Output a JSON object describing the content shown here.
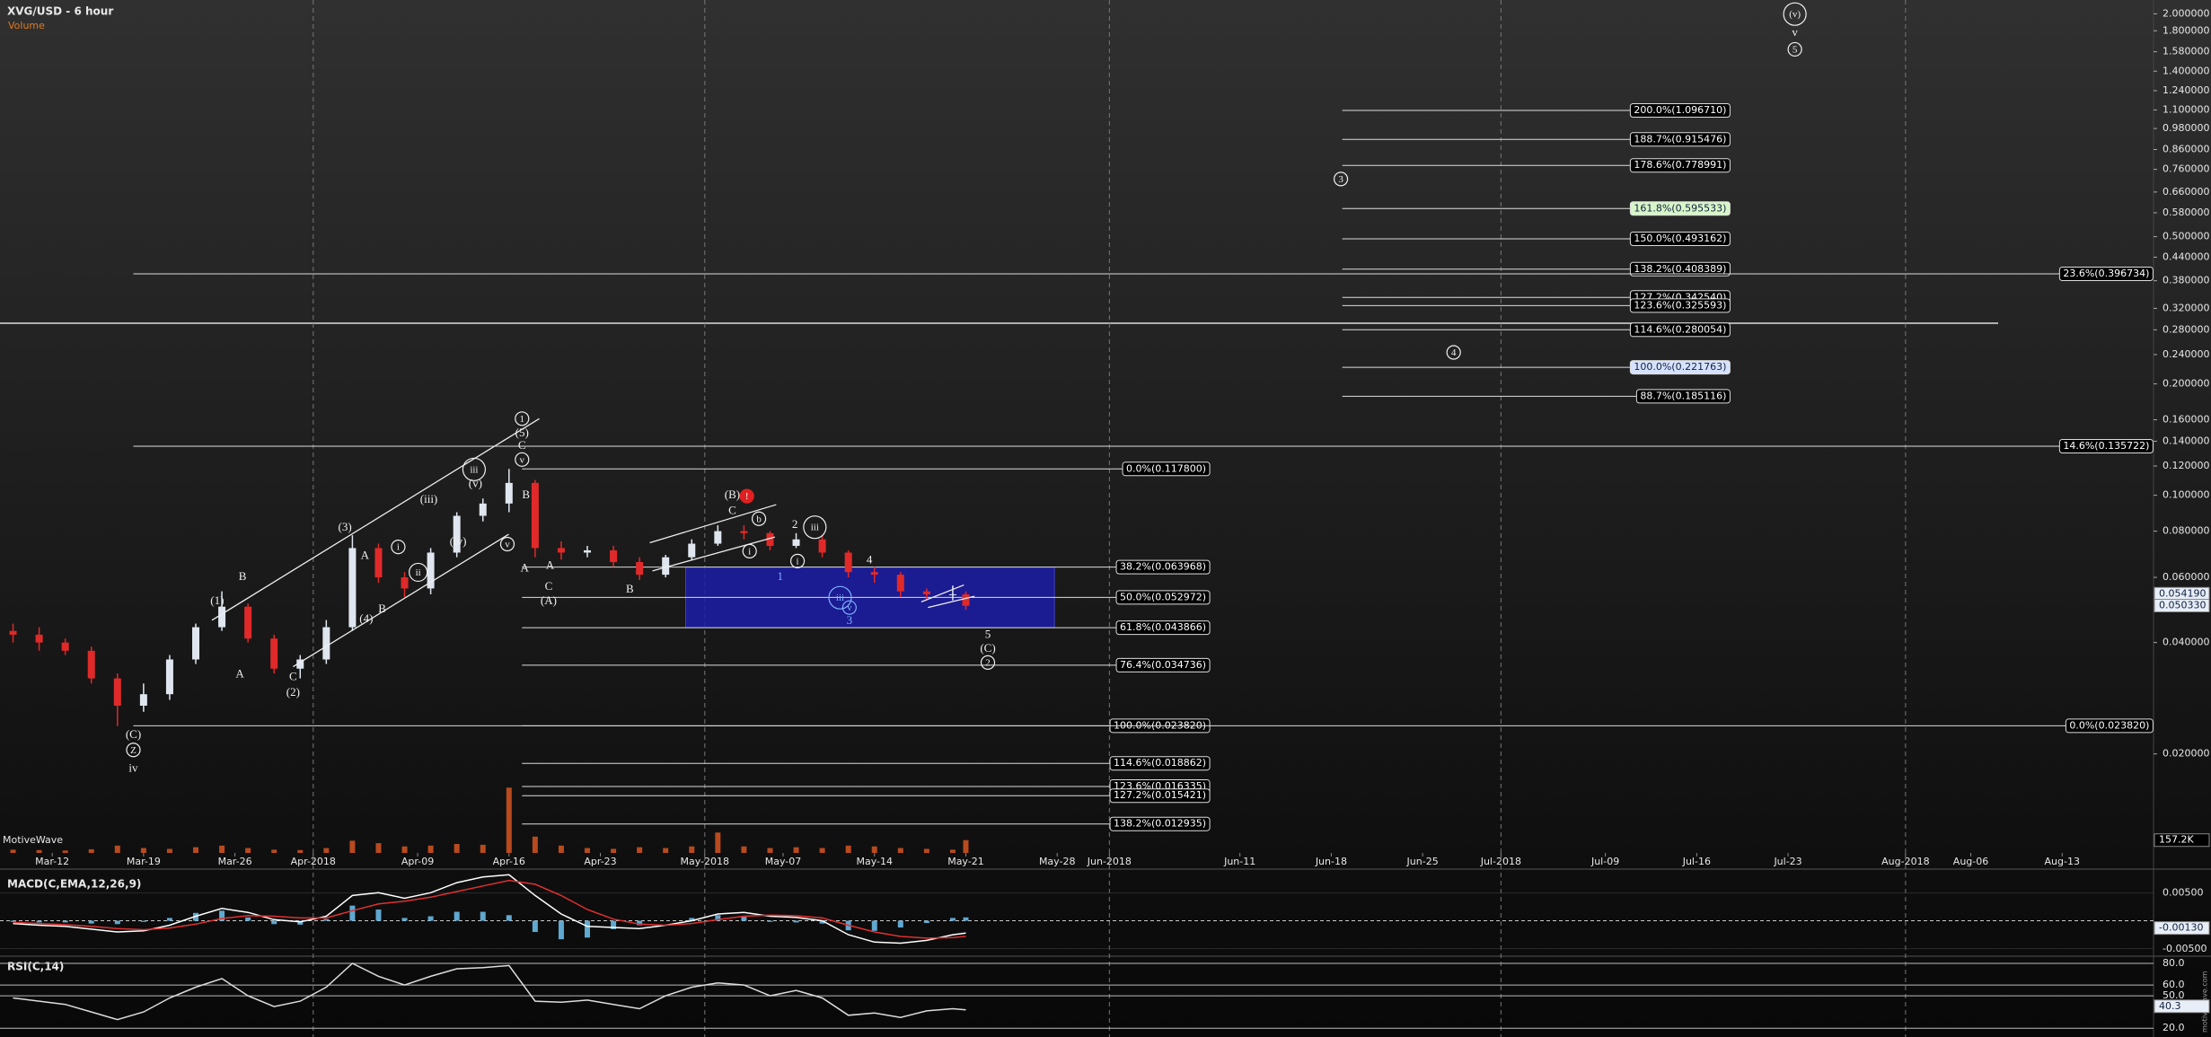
{
  "chart_data": [
    {
      "type": "candlestick",
      "title": "XVG/USD - 6 hour",
      "watermark": "MotiveWave",
      "source": "motivewave.com",
      "log": true,
      "ylim": [
        0.0108,
        2.18
      ],
      "xlim": [
        "2018-03-08",
        "2018-08-20"
      ],
      "up_color": "#dfe6ef",
      "down_color": "#e02a2a",
      "yticks": [
        {
          "value": 2,
          "label": "2.000000"
        },
        {
          "value": 1.8,
          "label": "1.800000"
        },
        {
          "value": 1.58,
          "label": "1.580000"
        },
        {
          "value": 1.4,
          "label": "1.400000"
        },
        {
          "value": 1.24,
          "label": "1.240000"
        },
        {
          "value": 1.1,
          "label": "1.100000"
        },
        {
          "value": 0.98,
          "label": "0.980000"
        },
        {
          "value": 0.86,
          "label": "0.860000"
        },
        {
          "value": 0.76,
          "label": "0.760000"
        },
        {
          "value": 0.66,
          "label": "0.660000"
        },
        {
          "value": 0.58,
          "label": "0.580000"
        },
        {
          "value": 0.5,
          "label": "0.500000"
        },
        {
          "value": 0.44,
          "label": "0.440000"
        },
        {
          "value": 0.38,
          "label": "0.380000"
        },
        {
          "value": 0.32,
          "label": "0.320000"
        },
        {
          "value": 0.28,
          "label": "0.280000"
        },
        {
          "value": 0.24,
          "label": "0.240000"
        },
        {
          "value": 0.2,
          "label": "0.200000"
        },
        {
          "value": 0.16,
          "label": "0.160000"
        },
        {
          "value": 0.14,
          "label": "0.140000"
        },
        {
          "value": 0.12,
          "label": "0.120000"
        },
        {
          "value": 0.1,
          "label": "0.100000"
        },
        {
          "value": 0.08,
          "label": "0.080000"
        },
        {
          "value": 0.06,
          "label": "0.060000"
        },
        {
          "value": 0.04,
          "label": "0.040000"
        },
        {
          "value": 0.02,
          "label": "0.020000"
        }
      ],
      "xticks": [
        {
          "value": "2018-03-12",
          "label": "Mar-12"
        },
        {
          "value": "2018-03-19",
          "label": "Mar-19"
        },
        {
          "value": "2018-03-26",
          "label": "Mar-26"
        },
        {
          "value": "2018-04-01",
          "label": "Apr-2018"
        },
        {
          "value": "2018-04-09",
          "label": "Apr-09"
        },
        {
          "value": "2018-04-16",
          "label": "Apr-16"
        },
        {
          "value": "2018-04-23",
          "label": "Apr-23"
        },
        {
          "value": "2018-05-01",
          "label": "May-2018"
        },
        {
          "value": "2018-05-07",
          "label": "May-07"
        },
        {
          "value": "2018-05-14",
          "label": "May-14"
        },
        {
          "value": "2018-05-21",
          "label": "May-21"
        },
        {
          "value": "2018-05-28",
          "label": "May-28"
        },
        {
          "value": "2018-06-01",
          "label": "Jun-2018"
        },
        {
          "value": "2018-06-11",
          "label": "Jun-11"
        },
        {
          "value": "2018-06-18",
          "label": "Jun-18"
        },
        {
          "value": "2018-06-25",
          "label": "Jun-25"
        },
        {
          "value": "2018-07-01",
          "label": "Jul-2018"
        },
        {
          "value": "2018-07-09",
          "label": "Jul-09"
        },
        {
          "value": "2018-07-16",
          "label": "Jul-16"
        },
        {
          "value": "2018-07-23",
          "label": "Jul-23"
        },
        {
          "value": "2018-08-01",
          "label": "Aug-2018"
        },
        {
          "value": "2018-08-06",
          "label": "Aug-06"
        },
        {
          "value": "2018-08-13",
          "label": "Aug-13"
        }
      ],
      "x": [
        "2018-03-09",
        "2018-03-11",
        "2018-03-13",
        "2018-03-15",
        "2018-03-17",
        "2018-03-19",
        "2018-03-21",
        "2018-03-23",
        "2018-03-25",
        "2018-03-27",
        "2018-03-29",
        "2018-03-31",
        "2018-04-02",
        "2018-04-04",
        "2018-04-06",
        "2018-04-08",
        "2018-04-10",
        "2018-04-12",
        "2018-04-14",
        "2018-04-16",
        "2018-04-18",
        "2018-04-20",
        "2018-04-22",
        "2018-04-24",
        "2018-04-26",
        "2018-04-28",
        "2018-04-30",
        "2018-05-02",
        "2018-05-04",
        "2018-05-06",
        "2018-05-08",
        "2018-05-10",
        "2018-05-12",
        "2018-05-14",
        "2018-05-16",
        "2018-05-18",
        "2018-05-20",
        "2018-05-21"
      ],
      "open": [
        0.043,
        0.042,
        0.04,
        0.038,
        0.032,
        0.027,
        0.029,
        0.036,
        0.044,
        0.05,
        0.041,
        0.034,
        0.036,
        0.044,
        0.072,
        0.06,
        0.056,
        0.07,
        0.088,
        0.095,
        0.108,
        0.072,
        0.07,
        0.071,
        0.066,
        0.061,
        0.068,
        0.074,
        0.08,
        0.079,
        0.073,
        0.076,
        0.07,
        0.062,
        0.061,
        0.055,
        0.054,
        0.054
      ],
      "high": [
        0.045,
        0.044,
        0.041,
        0.039,
        0.033,
        0.031,
        0.037,
        0.045,
        0.055,
        0.051,
        0.042,
        0.037,
        0.046,
        0.078,
        0.074,
        0.062,
        0.072,
        0.09,
        0.098,
        0.1178,
        0.11,
        0.075,
        0.073,
        0.073,
        0.068,
        0.069,
        0.076,
        0.083,
        0.083,
        0.08,
        0.079,
        0.078,
        0.071,
        0.064,
        0.062,
        0.056,
        0.057,
        0.055
      ],
      "low": [
        0.04,
        0.038,
        0.037,
        0.031,
        0.0238,
        0.026,
        0.028,
        0.035,
        0.043,
        0.04,
        0.033,
        0.032,
        0.035,
        0.043,
        0.058,
        0.053,
        0.054,
        0.068,
        0.085,
        0.09,
        0.068,
        0.067,
        0.068,
        0.064,
        0.059,
        0.06,
        0.067,
        0.073,
        0.076,
        0.071,
        0.072,
        0.068,
        0.06,
        0.058,
        0.053,
        0.052,
        0.052,
        0.049
      ],
      "close": [
        0.042,
        0.04,
        0.038,
        0.032,
        0.027,
        0.029,
        0.036,
        0.044,
        0.05,
        0.041,
        0.034,
        0.036,
        0.044,
        0.072,
        0.06,
        0.056,
        0.07,
        0.088,
        0.095,
        0.108,
        0.072,
        0.07,
        0.071,
        0.066,
        0.061,
        0.068,
        0.074,
        0.08,
        0.079,
        0.073,
        0.076,
        0.07,
        0.062,
        0.061,
        0.055,
        0.054,
        0.054,
        0.0503
      ],
      "volume": {
        "name": "Volume",
        "color": "#b84a1e",
        "ylim": [
          0,
          1100000
        ],
        "values": [
          40000,
          35000,
          30000,
          45000,
          90000,
          60000,
          50000,
          70000,
          90000,
          60000,
          40000,
          35000,
          60000,
          150000,
          120000,
          80000,
          90000,
          110000,
          100000,
          800000,
          200000,
          90000,
          60000,
          50000,
          70000,
          60000,
          80000,
          250000,
          80000,
          60000,
          70000,
          60000,
          90000,
          80000,
          60000,
          50000,
          40000,
          157200
        ],
        "last": {
          "value": 157200,
          "label": "157.2K"
        }
      },
      "price_markers": [
        {
          "value": 0.05419,
          "label": "0.054190"
        },
        {
          "value": 0.05033,
          "label": "0.050330"
        }
      ],
      "fib_levels": {
        "upper": [
          {
            "label": "200.0%(1.096710)",
            "value": 1.09671
          },
          {
            "label": "188.7%(0.915476)",
            "value": 0.915476
          },
          {
            "label": "178.6%(0.778991)",
            "value": 0.778991
          },
          {
            "label": "161.8%(0.595533)",
            "value": 0.595533,
            "fill": "#d8f5c8"
          },
          {
            "label": "150.0%(0.493162)",
            "value": 0.493162
          },
          {
            "label": "138.2%(0.408389)",
            "value": 0.408389
          },
          {
            "label": "127.2%(0.342540)",
            "value": 0.34254
          },
          {
            "label": "123.6%(0.325593)",
            "value": 0.325593
          },
          {
            "label": "114.6%(0.280054)",
            "value": 0.280054
          },
          {
            "label": "100.0%(0.221763)",
            "value": 0.221763,
            "fill": "#d6e2ff"
          },
          {
            "label": "88.7%(0.185116)",
            "value": 0.185116
          }
        ],
        "lower": [
          {
            "label": "0.0%(0.117800)",
            "value": 0.1178
          },
          {
            "label": "38.2%(0.063968)",
            "value": 0.063968
          },
          {
            "label": "50.0%(0.052972)",
            "value": 0.052972
          },
          {
            "label": "61.8%(0.043866)",
            "value": 0.043866
          },
          {
            "label": "76.4%(0.034736)",
            "value": 0.034736
          },
          {
            "label": "100.0%(0.023820)",
            "value": 0.02382
          },
          {
            "label": "114.6%(0.018862)",
            "value": 0.018862
          },
          {
            "label": "123.6%(0.016335)",
            "value": 0.016335
          },
          {
            "label": "127.2%(0.015421)",
            "value": 0.015421
          },
          {
            "label": "138.2%(0.012935)",
            "value": 0.012935
          }
        ],
        "long": [
          {
            "label": "23.6%(0.396734)",
            "value": 0.396734
          },
          {
            "label": "14.6%(0.135722)",
            "value": 0.135722
          },
          {
            "label": "0.0%(0.023820)",
            "value": 0.02382
          }
        ]
      },
      "annotations": [
        {
          "text": "(C)"
        },
        {
          "text": "Z",
          "circled": true
        },
        {
          "text": "iv"
        },
        {
          "text": "(1)"
        },
        {
          "text": "B"
        },
        {
          "text": "A"
        },
        {
          "text": "C"
        },
        {
          "text": "(2)"
        },
        {
          "text": "(3)"
        },
        {
          "text": "A"
        },
        {
          "text": "(4)"
        },
        {
          "text": "B"
        },
        {
          "text": "i",
          "circled": true
        },
        {
          "text": "ii",
          "circled": true
        },
        {
          "text": "(iii)"
        },
        {
          "text": "(iv)"
        },
        {
          "text": "(v)"
        },
        {
          "text": "iii",
          "circled": true
        },
        {
          "text": "v",
          "circled": true
        },
        {
          "text": "1",
          "circled": true
        },
        {
          "text": "(5)"
        },
        {
          "text": "C"
        },
        {
          "text": "v",
          "circled": true
        },
        {
          "text": "B"
        },
        {
          "text": "A"
        },
        {
          "text": "A"
        },
        {
          "text": "C"
        },
        {
          "text": "(A)"
        },
        {
          "text": "B"
        },
        {
          "text": "(B)"
        },
        {
          "text": "!",
          "circled": true,
          "color": "#e02020",
          "fill": "#e02020"
        },
        {
          "text": "C"
        },
        {
          "text": "b",
          "circled": true
        },
        {
          "text": "i",
          "circled": true
        },
        {
          "text": "2"
        },
        {
          "text": "iii",
          "circled": true
        },
        {
          "text": "1",
          "color": "#7fb0ff"
        },
        {
          "text": "4"
        },
        {
          "text": "iii",
          "circled": true,
          "color": "#7fb0ff"
        },
        {
          "text": "v",
          "circled": true,
          "color": "#7fb0ff"
        },
        {
          "text": "3",
          "color": "#7fb0ff"
        },
        {
          "text": "5"
        },
        {
          "text": "(C)"
        },
        {
          "text": "2",
          "circled": true
        },
        {
          "text": "(v)",
          "circled": true
        },
        {
          "text": "v"
        },
        {
          "text": "5",
          "circled": true
        },
        {
          "text": "3",
          "circled": true
        },
        {
          "text": "4",
          "circled": true
        },
        {
          "text": "i",
          "circled": true
        }
      ]
    },
    {
      "type": "macd",
      "title": "MACD(C,EMA,12,26,9)",
      "ylim": [
        -0.006,
        0.00825
      ],
      "yticks": [
        {
          "value": 0.005,
          "label": "0.00500"
        },
        {
          "value": -0.005,
          "label": "-0.00500"
        }
      ],
      "marker": {
        "value": -0.0013,
        "label": "-0.00130"
      },
      "series": [
        {
          "type": "bar",
          "color": "#5fa8d0",
          "values": [
            -0.0002,
            -0.0003,
            -0.0003,
            -0.0005,
            -0.0006,
            -0.0002,
            0.0005,
            0.0014,
            0.0018,
            0.0006,
            -0.0006,
            -0.0007,
            0.0003,
            0.0027,
            0.002,
            0.0005,
            0.0008,
            0.0016,
            0.0016,
            0.001,
            -0.002,
            -0.0033,
            -0.003,
            -0.0015,
            -0.0008,
            0,
            0.0005,
            0.001,
            0.0007,
            -0.0002,
            -0.0003,
            -0.0005,
            -0.0017,
            -0.0018,
            -0.0012,
            -0.0004,
            0.0005,
            0.0006
          ]
        },
        {
          "type": "line",
          "color": "#ffffff",
          "values": [
            -0.0005,
            -0.0008,
            -0.001,
            -0.0015,
            -0.002,
            -0.0018,
            -0.0008,
            0.0008,
            0.0022,
            0.0015,
            0.0002,
            -0.0002,
            0.0008,
            0.0045,
            0.005,
            0.004,
            0.005,
            0.0068,
            0.0078,
            0.0082,
            0.0045,
            0.0012,
            -0.001,
            -0.0012,
            -0.0014,
            -0.0008,
            0,
            0.0012,
            0.0015,
            0.0008,
            0.0006,
            0,
            -0.0025,
            -0.0038,
            -0.004,
            -0.0035,
            -0.0025,
            -0.0022
          ]
        },
        {
          "type": "line",
          "color": "#e03030",
          "values": [
            -0.0003,
            -0.0005,
            -0.0007,
            -0.001,
            -0.0014,
            -0.0016,
            -0.0013,
            -0.0006,
            0.0004,
            0.0009,
            0.0008,
            0.0005,
            0.0005,
            0.0018,
            0.003,
            0.0035,
            0.0042,
            0.0052,
            0.0062,
            0.0072,
            0.0065,
            0.0045,
            0.002,
            0.0003,
            -0.0006,
            -0.0008,
            -0.0005,
            0.0002,
            0.0008,
            0.001,
            0.0009,
            0.0005,
            -0.0008,
            -0.002,
            -0.0028,
            -0.0031,
            -0.003,
            -0.0028
          ]
        }
      ]
    },
    {
      "type": "line",
      "title": "RSI(C,14)",
      "ylim": [
        16,
        85
      ],
      "yticks": [
        {
          "value": 80,
          "label": "80.0"
        },
        {
          "value": 60,
          "label": "60.0"
        },
        {
          "value": 50,
          "label": "50.0"
        },
        {
          "value": 20,
          "label": "20.0"
        }
      ],
      "marker": {
        "value": 40.3,
        "label": "40.3"
      },
      "series": [
        {
          "color": "#dddddd",
          "values": [
            48,
            45,
            42,
            35,
            28,
            35,
            48,
            58,
            66,
            50,
            40,
            45,
            58,
            80,
            68,
            60,
            68,
            75,
            76,
            78,
            45,
            44,
            46,
            42,
            38,
            50,
            58,
            62,
            60,
            50,
            55,
            48,
            32,
            34,
            30,
            36,
            38,
            37
          ]
        }
      ]
    }
  ]
}
